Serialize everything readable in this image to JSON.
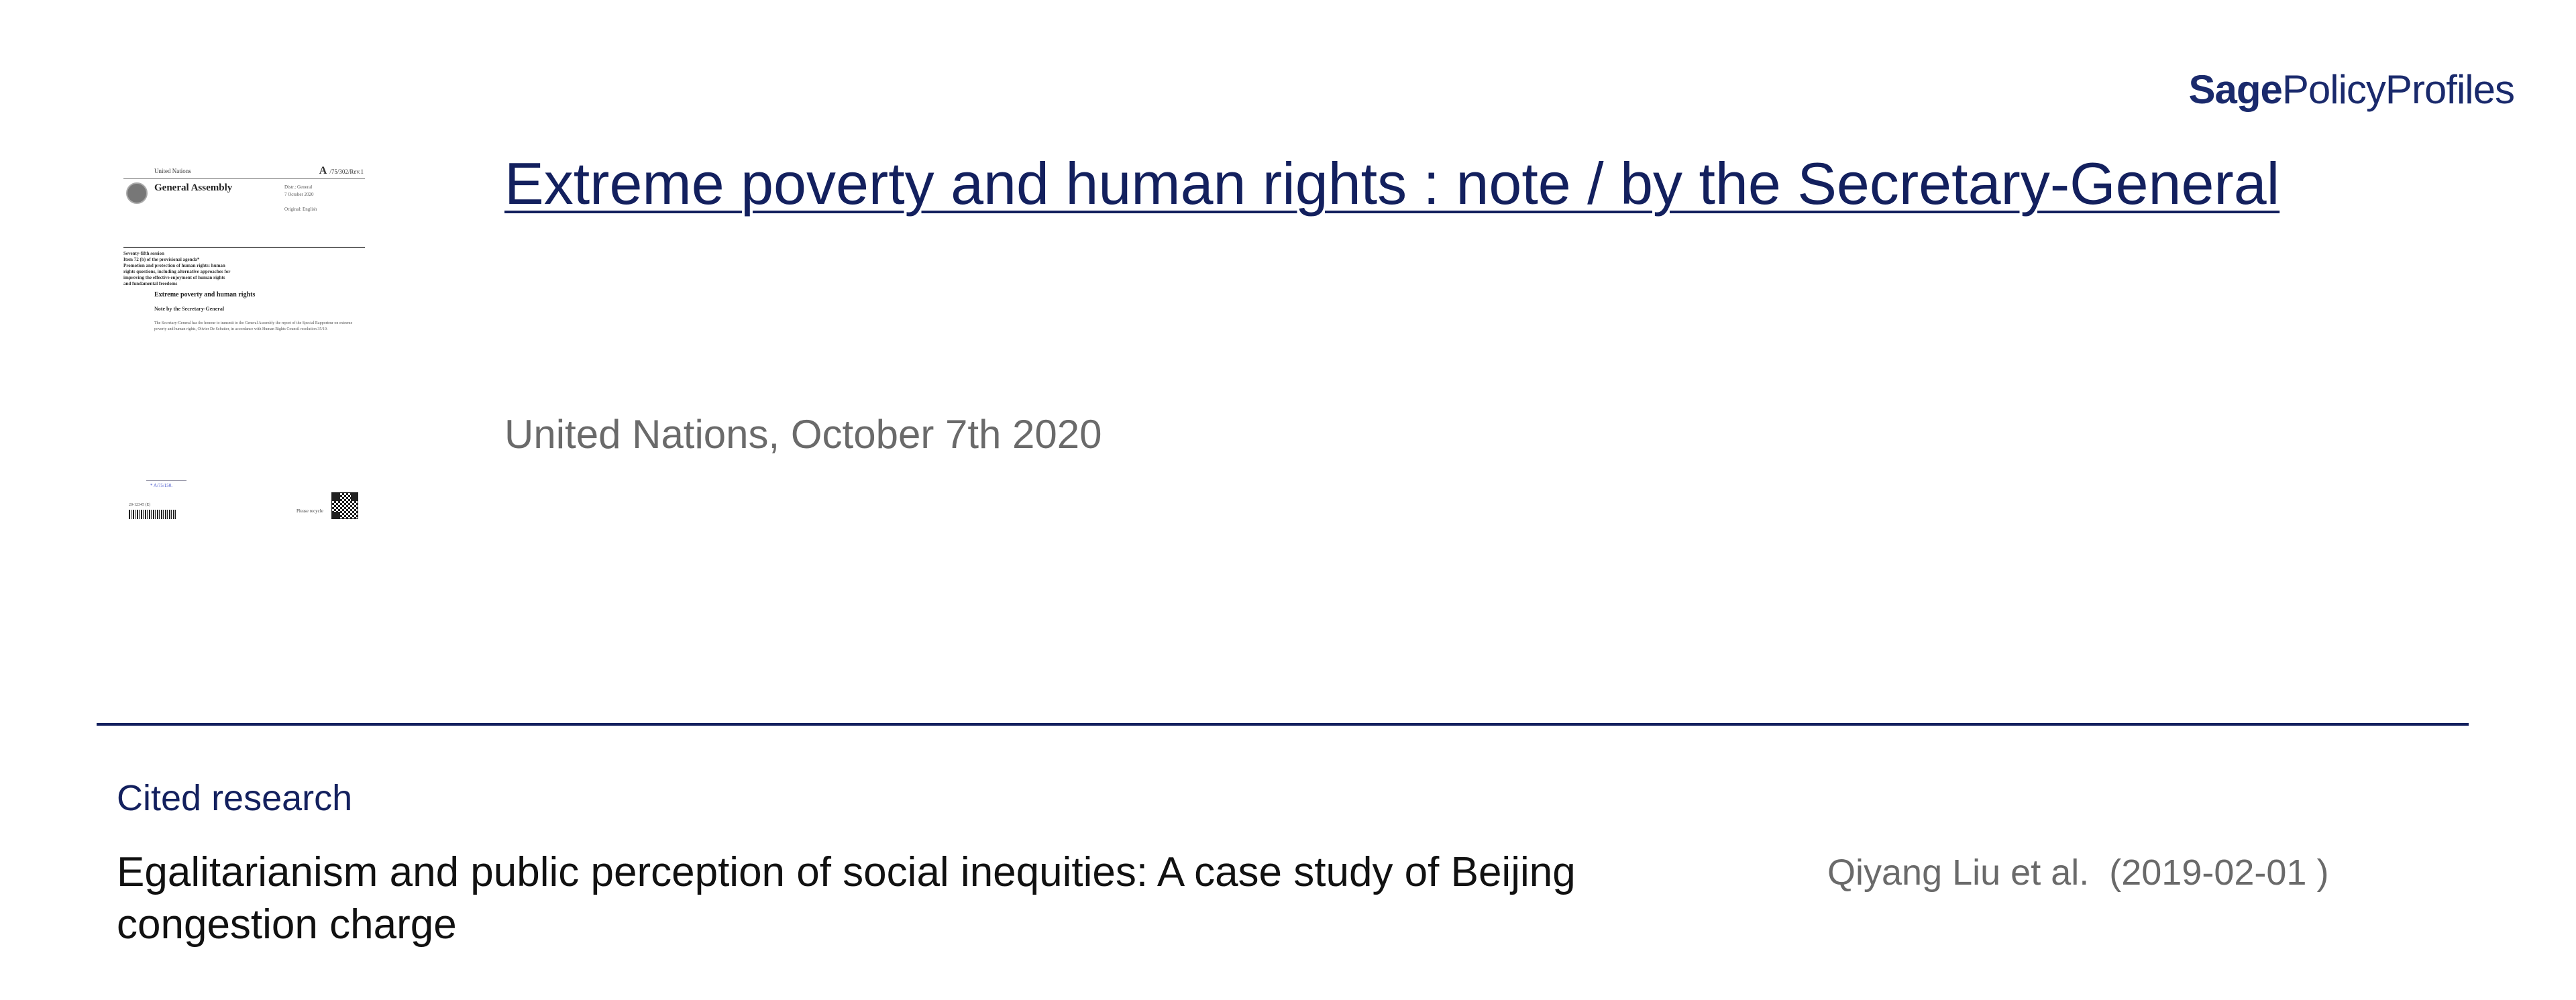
{
  "brand": {
    "part1": "Sage",
    "part2": "PolicyProfiles"
  },
  "thumbnail": {
    "org": "United Nations",
    "symbol_letter": "A",
    "symbol": "/75/302/Rev.1",
    "body": "General Assembly",
    "distribution": "Distr.: General\n7 October 2020\n\nOriginal: English",
    "session": "Seventy-fifth session\nItem 72 (b) of the provisional agenda*\nPromotion and protection of human rights: human\nrights questions, including alternative approaches for\nimproving the effective enjoyment of human rights\nand fundamental freedoms",
    "doc_title": "Extreme poverty and human rights",
    "note": "Note by the Secretary-General",
    "body_text": "The Secretary-General has the honour to transmit to the General Assembly the report of the Special Rapporteur on extreme poverty and human rights, Olivier De Schutter, in accordance with Human Rights Council resolution 35/19.",
    "footer_ref": "* A/75/150.",
    "barcode_text": "20-12345 (E)",
    "recycle": "Please recycle"
  },
  "document": {
    "title": "Extreme poverty and human rights : note / by the Secretary-General",
    "meta": "United Nations, October 7th 2020"
  },
  "cited_research": {
    "heading": "Cited research",
    "items": [
      {
        "title": "Egalitarianism and public perception of social inequities: A case study of Beijing congestion charge",
        "authors": "Qiyang Liu et al.",
        "date": "(2019-02-01 )"
      }
    ]
  },
  "colors": {
    "brand_navy": "#13205e",
    "meta_gray": "#6a6a6a",
    "text_dark": "#111111"
  }
}
